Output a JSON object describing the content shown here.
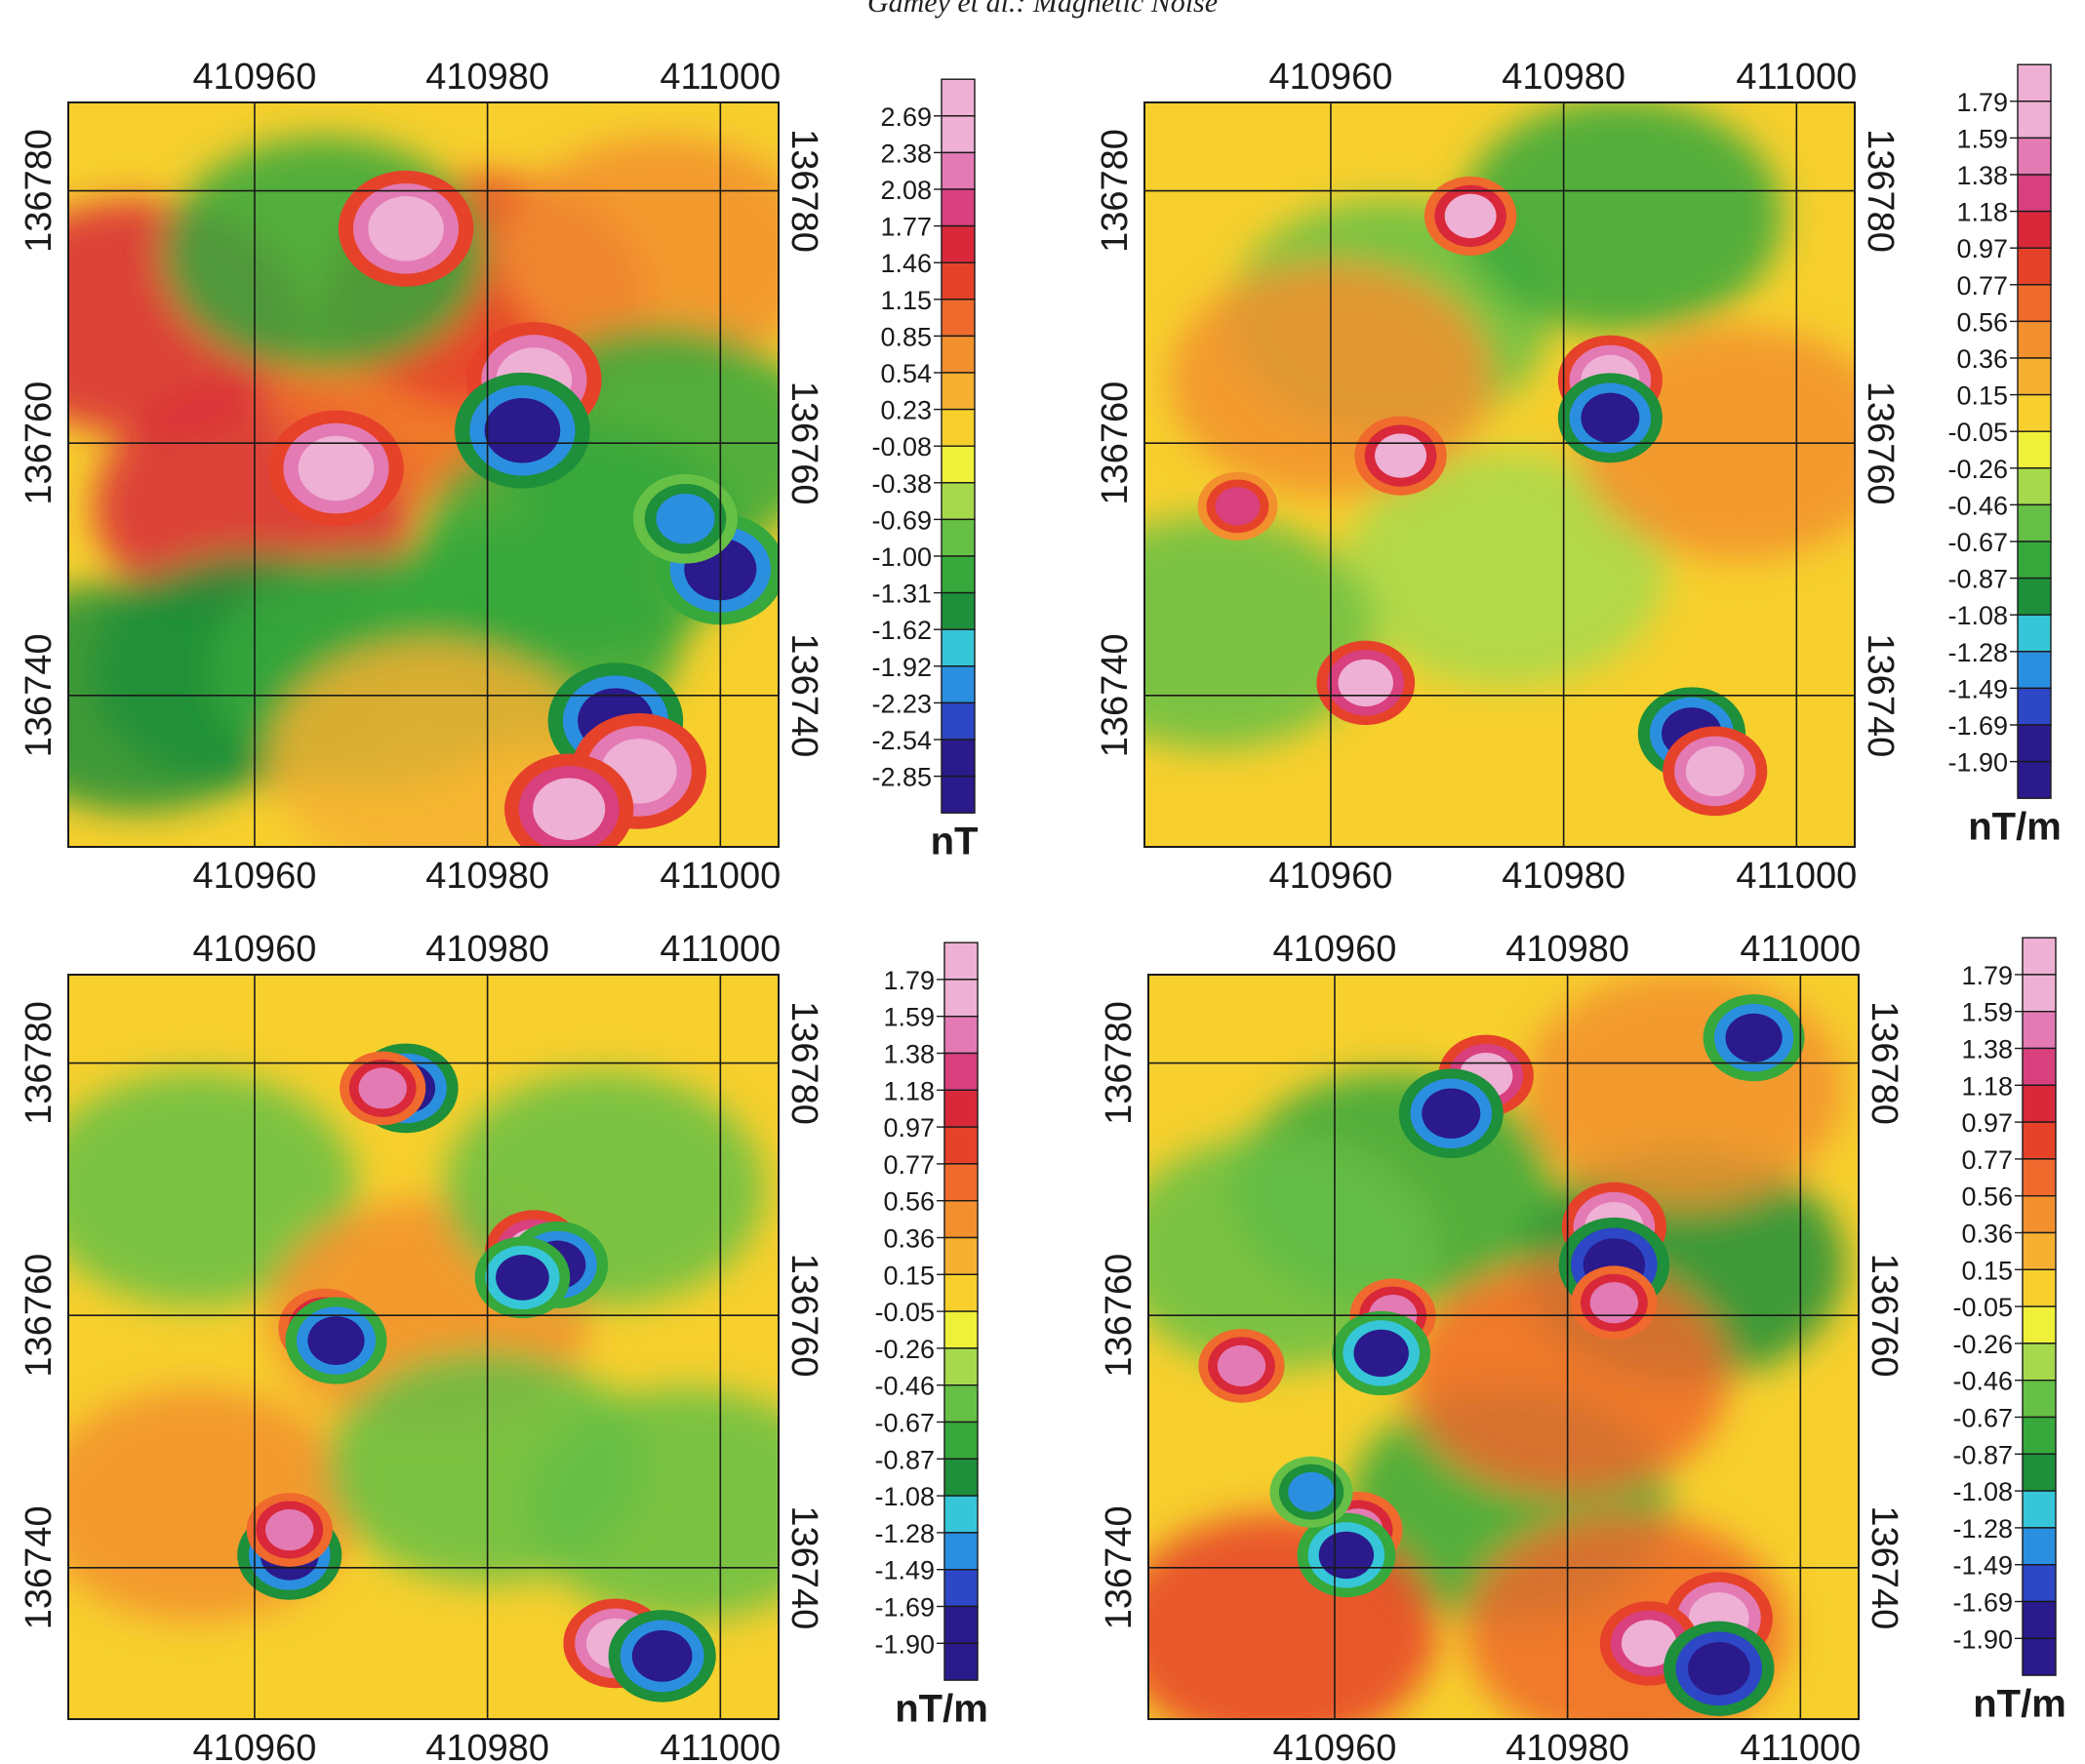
{
  "header": {
    "running_head": "Gamey et al.: Magnetic Noise"
  },
  "colors": {
    "scale": [
      "#2a1a8c",
      "#2d47c6",
      "#2b8fe0",
      "#36c6d8",
      "#1e8f3a",
      "#36a83c",
      "#66c046",
      "#a7d94c",
      "#eef03a",
      "#f7d02e",
      "#f6b032",
      "#f2902e",
      "#ef6a2c",
      "#e6422a",
      "#d8283a",
      "#d8407e",
      "#e37ab4",
      "#eeb0d4"
    ],
    "frame": "#1a1a1a",
    "background": "#ffffff"
  },
  "chart_data": [
    {
      "type": "heatmap",
      "x_ticks": [
        "410960",
        "410980",
        "411000"
      ],
      "y_ticks": [
        "136780",
        "136760",
        "136740"
      ],
      "colorbar": {
        "labels": [
          "2.69",
          "2.38",
          "2.08",
          "1.77",
          "1.46",
          "1.15",
          "0.85",
          "0.54",
          "0.23",
          "-0.08",
          "-0.38",
          "-0.69",
          "-1.00",
          "-1.31",
          "-1.62",
          "-1.92",
          "-2.23",
          "-2.54",
          "-2.85"
        ],
        "unit": "nT"
      },
      "anomalies": [
        {
          "x": 410973,
          "y": 136777,
          "v": 3.0
        },
        {
          "x": 410984,
          "y": 136765,
          "v": 3.0
        },
        {
          "x": 410983,
          "y": 136761,
          "v": -3.0
        },
        {
          "x": 410967,
          "y": 136758,
          "v": 3.0
        },
        {
          "x": 410991,
          "y": 136738,
          "v": -3.0
        },
        {
          "x": 410993,
          "y": 136734,
          "v": 3.0
        },
        {
          "x": 410987,
          "y": 136731,
          "v": 2.8
        },
        {
          "x": 411000,
          "y": 136750,
          "v": -2.8
        },
        {
          "x": 410997,
          "y": 136754,
          "v": -2.0
        }
      ],
      "trends": [
        {
          "x": 410950,
          "y": 136770,
          "v": 1.5
        },
        {
          "x": 410960,
          "y": 136755,
          "v": 1.6
        },
        {
          "x": 410975,
          "y": 136765,
          "v": 0.9
        },
        {
          "x": 410980,
          "y": 136772,
          "v": 1.2
        },
        {
          "x": 410995,
          "y": 136775,
          "v": 0.6
        },
        {
          "x": 410960,
          "y": 136742,
          "v": -1.4
        },
        {
          "x": 410950,
          "y": 136740,
          "v": -1.5
        },
        {
          "x": 410970,
          "y": 136742,
          "v": -1.2
        },
        {
          "x": 410966,
          "y": 136775,
          "v": -1.3
        },
        {
          "x": 410988,
          "y": 136752,
          "v": -1.3
        },
        {
          "x": 410995,
          "y": 136760,
          "v": -1.1
        },
        {
          "x": 410983,
          "y": 136745,
          "v": -1.2
        },
        {
          "x": 410975,
          "y": 136735,
          "v": 0.4
        }
      ]
    },
    {
      "type": "heatmap",
      "x_ticks": [
        "410960",
        "410980",
        "411000"
      ],
      "y_ticks": [
        "136780",
        "136760",
        "136740"
      ],
      "colorbar": {
        "labels": [
          "1.79",
          "1.59",
          "1.38",
          "1.18",
          "0.97",
          "0.77",
          "0.56",
          "0.36",
          "0.15",
          "-0.05",
          "-0.26",
          "-0.46",
          "-0.67",
          "-0.87",
          "-1.08",
          "-1.28",
          "-1.49",
          "-1.69",
          "-1.90"
        ],
        "unit": "nT/m"
      },
      "anomalies": [
        {
          "x": 410972,
          "y": 136778,
          "v": 1.6
        },
        {
          "x": 410984,
          "y": 136765,
          "v": 2.0
        },
        {
          "x": 410984,
          "y": 136762,
          "v": -2.0
        },
        {
          "x": 410966,
          "y": 136759,
          "v": 1.6
        },
        {
          "x": 410963,
          "y": 136741,
          "v": 1.8
        },
        {
          "x": 410991,
          "y": 136737,
          "v": -2.1
        },
        {
          "x": 410993,
          "y": 136734,
          "v": 2.0
        },
        {
          "x": 410952,
          "y": 136755,
          "v": 1.2
        }
      ],
      "trends": [
        {
          "x": 410965,
          "y": 136770,
          "v": -0.6
        },
        {
          "x": 410985,
          "y": 136778,
          "v": -0.7
        },
        {
          "x": 410975,
          "y": 136750,
          "v": -0.4
        },
        {
          "x": 410950,
          "y": 136745,
          "v": -0.6
        },
        {
          "x": 410995,
          "y": 136760,
          "v": 0.5
        },
        {
          "x": 410960,
          "y": 136765,
          "v": 0.4
        }
      ]
    },
    {
      "type": "heatmap",
      "x_ticks": [
        "410960",
        "410980",
        "411000"
      ],
      "y_ticks": [
        "136780",
        "136760",
        "136740"
      ],
      "colorbar": {
        "labels": [
          "1.79",
          "1.59",
          "1.38",
          "1.18",
          "0.97",
          "0.77",
          "0.56",
          "0.36",
          "0.15",
          "-0.05",
          "-0.26",
          "-0.46",
          "-0.67",
          "-0.87",
          "-1.08",
          "-1.28",
          "-1.49",
          "-1.69",
          "-1.90"
        ],
        "unit": "nT/m"
      },
      "anomalies": [
        {
          "x": 410973,
          "y": 136778,
          "v": -2.0
        },
        {
          "x": 410971,
          "y": 136778,
          "v": 1.4
        },
        {
          "x": 410984,
          "y": 136765,
          "v": 1.8
        },
        {
          "x": 410986,
          "y": 136764,
          "v": -1.9
        },
        {
          "x": 410983,
          "y": 136763,
          "v": -1.7
        },
        {
          "x": 410966,
          "y": 136759,
          "v": 1.6
        },
        {
          "x": 410967,
          "y": 136758,
          "v": -1.9
        },
        {
          "x": 410963,
          "y": 136741,
          "v": -2.0
        },
        {
          "x": 410963,
          "y": 136743,
          "v": 1.4
        },
        {
          "x": 410991,
          "y": 136734,
          "v": 2.0
        },
        {
          "x": 410995,
          "y": 136733,
          "v": -2.1
        }
      ],
      "trends": [
        {
          "x": 410955,
          "y": 136770,
          "v": -0.5
        },
        {
          "x": 410975,
          "y": 136760,
          "v": 0.5
        },
        {
          "x": 410990,
          "y": 136770,
          "v": -0.6
        },
        {
          "x": 410955,
          "y": 136745,
          "v": 0.4
        },
        {
          "x": 410980,
          "y": 136748,
          "v": -0.5
        },
        {
          "x": 410997,
          "y": 136745,
          "v": -0.6
        }
      ]
    },
    {
      "type": "heatmap",
      "x_ticks": [
        "410960",
        "410980",
        "411000"
      ],
      "y_ticks": [
        "136780",
        "136760",
        "136740"
      ],
      "colorbar": {
        "labels": [
          "1.79",
          "1.59",
          "1.38",
          "1.18",
          "0.97",
          "0.77",
          "0.56",
          "0.36",
          "0.15",
          "-0.05",
          "-0.26",
          "-0.46",
          "-0.67",
          "-0.87",
          "-1.08",
          "-1.28",
          "-1.49",
          "-1.69",
          "-1.90"
        ],
        "unit": "nT/m"
      },
      "anomalies": [
        {
          "x": 410973,
          "y": 136779,
          "v": 1.7
        },
        {
          "x": 410970,
          "y": 136776,
          "v": -2.0
        },
        {
          "x": 410984,
          "y": 136767,
          "v": 2.0
        },
        {
          "x": 410984,
          "y": 136764,
          "v": -2.2
        },
        {
          "x": 410984,
          "y": 136761,
          "v": 1.4
        },
        {
          "x": 410965,
          "y": 136760,
          "v": 1.4
        },
        {
          "x": 410964,
          "y": 136757,
          "v": -1.8
        },
        {
          "x": 410962,
          "y": 136743,
          "v": 1.5
        },
        {
          "x": 410961,
          "y": 136741,
          "v": -1.8
        },
        {
          "x": 410993,
          "y": 136736,
          "v": 2.1
        },
        {
          "x": 410987,
          "y": 136734,
          "v": 1.8
        },
        {
          "x": 410993,
          "y": 136732,
          "v": -2.2
        },
        {
          "x": 410952,
          "y": 136756,
          "v": 1.4
        },
        {
          "x": 410996,
          "y": 136782,
          "v": -1.9
        },
        {
          "x": 410958,
          "y": 136746,
          "v": -1.3
        }
      ],
      "trends": [
        {
          "x": 410965,
          "y": 136770,
          "v": -0.8
        },
        {
          "x": 410990,
          "y": 136764,
          "v": -0.9
        },
        {
          "x": 410975,
          "y": 136745,
          "v": -0.8
        },
        {
          "x": 410955,
          "y": 136735,
          "v": 0.8
        },
        {
          "x": 410985,
          "y": 136735,
          "v": 0.7
        },
        {
          "x": 410980,
          "y": 136755,
          "v": 0.6
        },
        {
          "x": 410990,
          "y": 136778,
          "v": 0.5
        },
        {
          "x": 410955,
          "y": 136765,
          "v": -0.5
        }
      ]
    }
  ]
}
